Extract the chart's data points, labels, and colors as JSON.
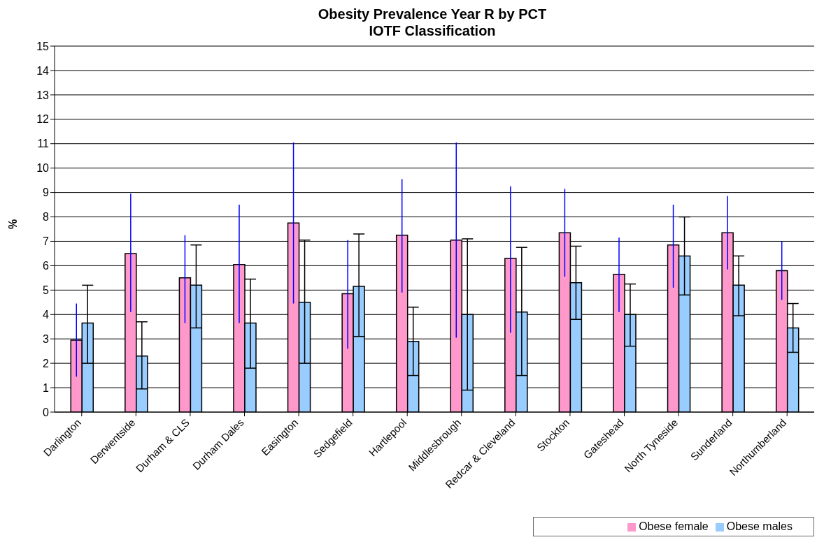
{
  "chart_data": {
    "type": "bar",
    "title": "Obesity Prevalence Year R by PCT",
    "subtitle": "IOTF Classification",
    "ylabel": "%",
    "categories": [
      "Darlington",
      "Derwentside",
      "Durham & CLS",
      "Durham Dales",
      "Easington",
      "Sedgefield",
      "Hartlepool",
      "Middlesbrough",
      "Redcar & Cleveland",
      "Stockton",
      "Gateshead",
      "North Tyneside",
      "Sunderland",
      "Northumberland"
    ],
    "series": [
      {
        "name": "Obese female",
        "color": "#ff99cc",
        "values": [
          2.95,
          6.5,
          5.5,
          6.05,
          7.75,
          4.85,
          7.25,
          7.05,
          6.3,
          7.35,
          5.65,
          6.85,
          7.35,
          5.8
        ],
        "errors": [
          [
            1.45,
            4.45
          ],
          [
            4.1,
            8.95
          ],
          [
            3.65,
            7.25
          ],
          [
            3.65,
            8.5
          ],
          [
            4.45,
            11.05
          ],
          [
            2.6,
            7.05
          ],
          [
            4.9,
            9.55
          ],
          [
            3.05,
            11.05
          ],
          [
            3.25,
            9.25
          ],
          [
            5.55,
            9.15
          ],
          [
            4.1,
            7.15
          ],
          [
            5.1,
            8.5
          ],
          [
            5.85,
            8.85
          ],
          [
            4.6,
            7.0
          ]
        ]
      },
      {
        "name": "Obese males",
        "color": "#99ccff",
        "values": [
          3.65,
          2.3,
          5.2,
          3.65,
          4.5,
          5.15,
          2.9,
          4.0,
          4.1,
          5.3,
          4.0,
          6.4,
          5.2,
          3.45
        ],
        "errors": [
          [
            2.0,
            5.2
          ],
          [
            0.95,
            3.7
          ],
          [
            3.45,
            6.85
          ],
          [
            1.8,
            5.45
          ],
          [
            2.0,
            7.05
          ],
          [
            3.1,
            7.3
          ],
          [
            1.5,
            4.3
          ],
          [
            0.9,
            7.1
          ],
          [
            1.5,
            6.75
          ],
          [
            3.8,
            6.8
          ],
          [
            2.7,
            5.25
          ],
          [
            4.8,
            8.0
          ],
          [
            3.95,
            6.4
          ],
          [
            2.45,
            4.45
          ]
        ]
      }
    ],
    "ylim": [
      0,
      15
    ],
    "yticks": [
      0,
      1,
      2,
      3,
      4,
      5,
      6,
      7,
      8,
      9,
      10,
      11,
      12,
      13,
      14,
      15
    ],
    "grid": "y",
    "legend": "bottom right"
  }
}
